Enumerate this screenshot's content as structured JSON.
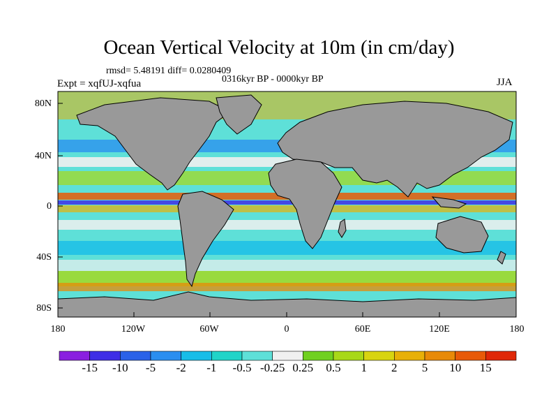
{
  "title": "Ocean Vertical Velocity at 10m (in cm/day)",
  "stats": "rmsd= 5.48191  diff= 0.0280409",
  "experiment": "Expt = xqfUJ-xqfua",
  "period": "0316kyr BP - 0000kyr BP",
  "season": "JJA",
  "lat_ticks": [
    "80N",
    "40N",
    "0",
    "40S",
    "80S"
  ],
  "lon_ticks": [
    "180",
    "120W",
    "60W",
    "0",
    "60E",
    "120E",
    "180"
  ],
  "colorbar": {
    "colors": [
      "#8a1fe0",
      "#3f2ee6",
      "#2a62e8",
      "#2a8ef0",
      "#18bde8",
      "#20d4c8",
      "#5ee0d8",
      "#f0f0f0",
      "#70d020",
      "#a8d818",
      "#d8d410",
      "#e8b008",
      "#e88a08",
      "#e85a08",
      "#e02808"
    ],
    "labels": [
      "-15",
      "-10",
      "-5",
      "-2",
      "-1",
      "-0.5",
      "-0.25",
      "0.25",
      "0.5",
      "1",
      "2",
      "5",
      "10",
      "15"
    ]
  },
  "colors": {
    "land": "#999999",
    "coast": "#000000"
  }
}
